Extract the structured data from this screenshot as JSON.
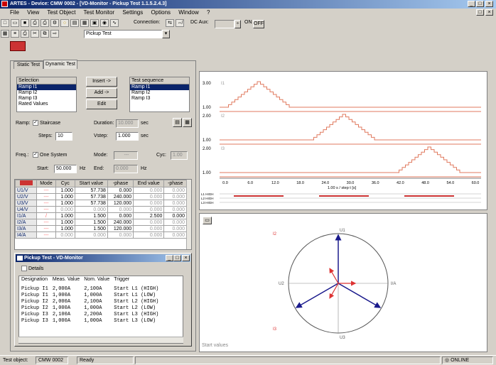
{
  "window": {
    "title": "ARTES - Device: CMW 0002 - [VD-Monitor - Pickup Test 1.1.5.2.4.3]"
  },
  "menu": [
    "File",
    "View",
    "Test Object",
    "Test Monitor",
    "Settings",
    "Options",
    "Window",
    "?"
  ],
  "toolbar": {
    "connection_label": "Connection:",
    "dc_aux_label": "DC Aux:",
    "dc_aux_value": "",
    "on_label": "ON",
    "off_label": "OFF",
    "test_select_value": "Pickup Test"
  },
  "tabs": [
    "Static Test",
    "Dynamic Test"
  ],
  "selection": {
    "title": "Selection",
    "items": [
      "Ramp I1",
      "Ramp I2",
      "Ramp I3",
      "Rated Values"
    ],
    "selected_index": 0
  },
  "buttons": {
    "insert": "Insert ->",
    "add": "Add ->",
    "edit": "Edit"
  },
  "test_sequence": {
    "title": "Test sequence",
    "items": [
      "Ramp I1",
      "Ramp I2",
      "Ramp I3"
    ],
    "selected_index": 0
  },
  "ramp": {
    "label": "Ramp:",
    "staircase_label": "Staircase",
    "steps_label": "Steps:",
    "steps_value": "10",
    "duration_label": "Duration:",
    "duration_value": "10.000",
    "duration_unit": "sec",
    "vstep_label": "Vstep:",
    "vstep_value": "1.000",
    "vstep_unit": "sec"
  },
  "freq": {
    "label": "Freq.:",
    "one_system_label": "One System",
    "mode_label": "Mode:",
    "mode_value": "---",
    "cyc_label": "Cyc:",
    "cyc_value": "1.00",
    "start_label": "Start:",
    "start_value": "50.000",
    "start_unit": "Hz",
    "end_label": "End:",
    "end_value": "0.000",
    "end_unit": "Hz"
  },
  "grid": {
    "headers": [
      "",
      "Mode",
      "Cyc",
      "Start value",
      "-phase",
      "End value",
      "-phase"
    ],
    "rows": [
      [
        "U1/V",
        "---",
        "1.000",
        "57.738",
        "0.000",
        "0.000",
        "0.000"
      ],
      [
        "U2/V",
        "---",
        "1.000",
        "57.738",
        "240.000",
        "0.000",
        "0.000"
      ],
      [
        "U3/V",
        "---",
        "1.000",
        "57.738",
        "120.000",
        "0.000",
        "0.000"
      ],
      [
        "U4/V",
        "---",
        "0.000",
        "0.000",
        "0.000",
        "0.000",
        "0.000"
      ],
      [
        "I1/A",
        "/",
        "1.000",
        "1.500",
        "0.000",
        "2.500",
        "0.000"
      ],
      [
        "I2/A",
        "---",
        "1.000",
        "1.500",
        "240.000",
        "0.000",
        "0.000"
      ],
      [
        "I3/A",
        "---",
        "1.000",
        "1.500",
        "120.000",
        "0.000",
        "0.000"
      ],
      [
        "I4/A",
        "---",
        "0.000",
        "0.000",
        "0.000",
        "0.000",
        "0.000"
      ]
    ]
  },
  "vd_monitor": {
    "title": "Pickup Test - VD-Monitor",
    "details_label": "Details",
    "headers": [
      "Designation",
      "Meas. Value",
      "Nom. Value",
      "Trigger"
    ],
    "rows": [
      [
        "Pickup I1",
        "2,000A",
        "2,100A",
        "Start L1 (HIGH)"
      ],
      [
        "Pickup I1",
        "1,000A",
        "1,000A",
        "Start L1 (LOW)"
      ],
      [
        "Pickup I2",
        "2,000A",
        "2,100A",
        "Start L2 (HIGH)"
      ],
      [
        "Pickup I2",
        "1,000A",
        "1,000A",
        "Start L2 (LOW)"
      ],
      [
        "Pickup I3",
        "2,100A",
        "2,200A",
        "Start L3 (HIGH)"
      ],
      [
        "Pickup I3",
        "1,000A",
        "1,000A",
        "Start L3 (LOW)"
      ]
    ]
  },
  "ramp_chart": {
    "y_labels": [
      "3.00",
      "1.00",
      "2.00",
      "1.00",
      "2.00",
      "1.00"
    ],
    "trace_labels": [
      "I1",
      "I2",
      "I3"
    ],
    "x_ticks": [
      "0.0",
      "6.0",
      "12.0",
      "18.0",
      "24.0",
      "30.0",
      "36.0",
      "42.0",
      "48.0",
      "54.0",
      "60.0"
    ],
    "x_label": "1.00 s / step    t [s]",
    "trigger_labels": [
      "L1 HIGH",
      "L2 HIGH",
      "L3 HIGH"
    ],
    "accent_color": "#e07a5f"
  },
  "phasor": {
    "labels": {
      "top": "U1",
      "right": "I/A",
      "bottom": "U3",
      "left": "U2",
      "upper_left": "I2",
      "lower_left": "I3"
    },
    "footer": "Start values"
  },
  "statusbar": {
    "test_object_label": "Test object:",
    "test_object_value": "CMW 0002",
    "status": "Ready",
    "online": "ONLINE"
  }
}
